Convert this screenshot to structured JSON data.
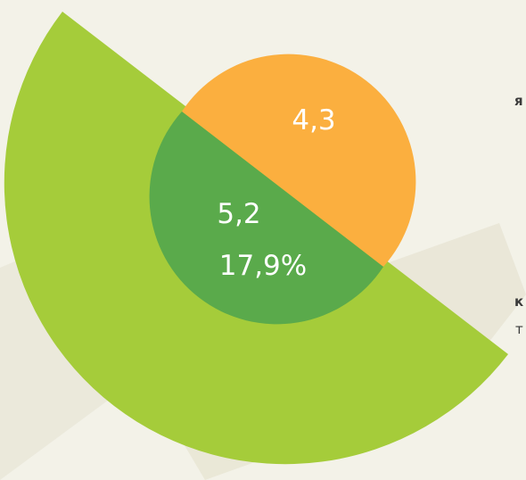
{
  "labels": {
    "top": "4,3",
    "value": "5,2",
    "percent": "17,9%"
  },
  "side_text": [
    "я",
    "к",
    "т"
  ]
}
